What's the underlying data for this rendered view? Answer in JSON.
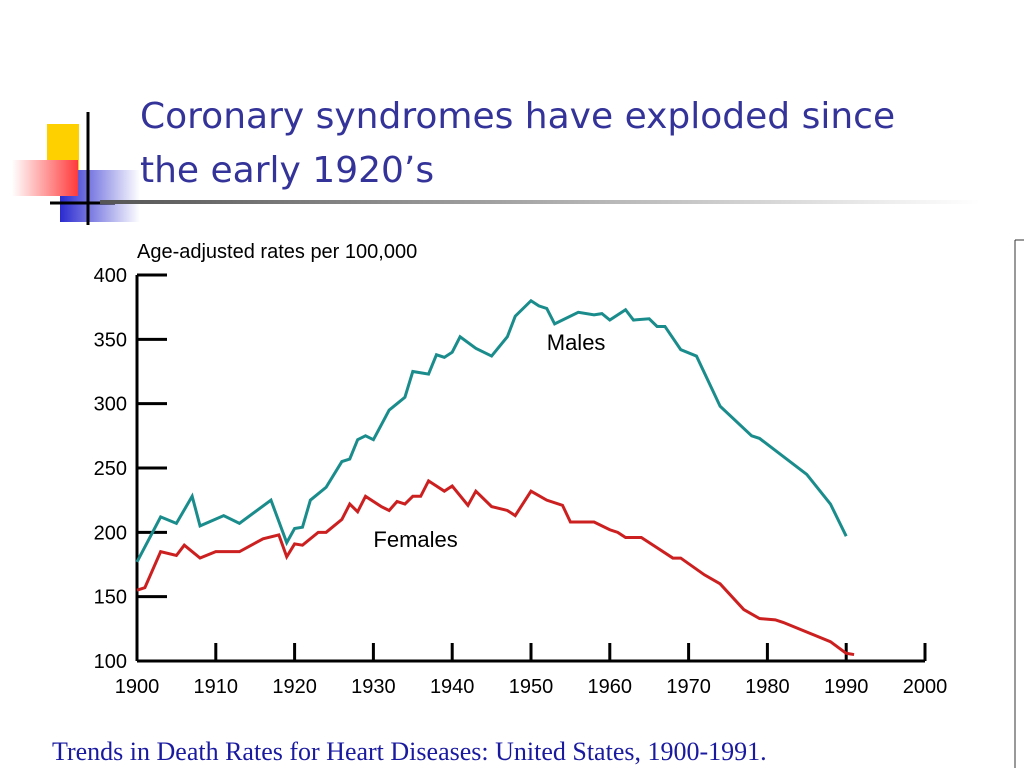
{
  "slide": {
    "title_lines": [
      "Coronary syndromes have exploded since",
      "the early 1920’s"
    ]
  },
  "chart_data": {
    "type": "line",
    "ylabel": "Age-adjusted rates per 100,000",
    "caption": "Trends in Death Rates for Heart Diseases: United States, 1900-1991.",
    "xlim": [
      1900,
      2000
    ],
    "xticks": [
      1900,
      1910,
      1920,
      1930,
      1940,
      1950,
      1960,
      1970,
      1980,
      1990,
      2000
    ],
    "ylim": [
      100,
      400
    ],
    "yticks": [
      100,
      150,
      200,
      250,
      300,
      350,
      400
    ],
    "series": [
      {
        "name": "Males",
        "color": "#1a8c8c",
        "x": [
          1900,
          1903,
          1905,
          1907,
          1908,
          1911,
          1913,
          1917,
          1919,
          1920,
          1921,
          1922,
          1924,
          1926,
          1927,
          1928,
          1929,
          1930,
          1932,
          1933,
          1934,
          1935,
          1937,
          1938,
          1939,
          1940,
          1941,
          1943,
          1945,
          1947,
          1948,
          1950,
          1951,
          1952,
          1953,
          1956,
          1958,
          1959,
          1960,
          1962,
          1963,
          1965,
          1966,
          1967,
          1969,
          1971,
          1974,
          1978,
          1979,
          1985,
          1988,
          1990
        ],
        "values": [
          177,
          212,
          207,
          228,
          205,
          213,
          207,
          225,
          192,
          203,
          204,
          225,
          235,
          255,
          257,
          272,
          275,
          272,
          295,
          300,
          305,
          325,
          323,
          338,
          336,
          340,
          352,
          343,
          337,
          352,
          368,
          380,
          376,
          374,
          362,
          371,
          369,
          370,
          365,
          373,
          365,
          366,
          360,
          360,
          342,
          337,
          298,
          275,
          273,
          245,
          222,
          197
        ]
      },
      {
        "name": "Females",
        "color": "#cc2020",
        "x": [
          1900,
          1901,
          1903,
          1905,
          1906,
          1908,
          1910,
          1913,
          1916,
          1918,
          1919,
          1920,
          1921,
          1923,
          1924,
          1926,
          1927,
          1928,
          1929,
          1931,
          1932,
          1933,
          1934,
          1935,
          1936,
          1937,
          1939,
          1940,
          1942,
          1943,
          1945,
          1947,
          1948,
          1950,
          1952,
          1954,
          1955,
          1958,
          1960,
          1961,
          1962,
          1964,
          1966,
          1968,
          1969,
          1972,
          1974,
          1977,
          1979,
          1981,
          1982,
          1986,
          1988,
          1990,
          1991
        ],
        "values": [
          155,
          157,
          185,
          182,
          190,
          180,
          185,
          185,
          195,
          198,
          181,
          191,
          190,
          200,
          200,
          210,
          222,
          216,
          228,
          220,
          217,
          224,
          222,
          228,
          228,
          240,
          232,
          236,
          221,
          232,
          220,
          217,
          213,
          232,
          225,
          221,
          208,
          208,
          202,
          200,
          196,
          196,
          188,
          180,
          180,
          167,
          160,
          140,
          133,
          132,
          130,
          120,
          115,
          106,
          105
        ]
      }
    ]
  }
}
